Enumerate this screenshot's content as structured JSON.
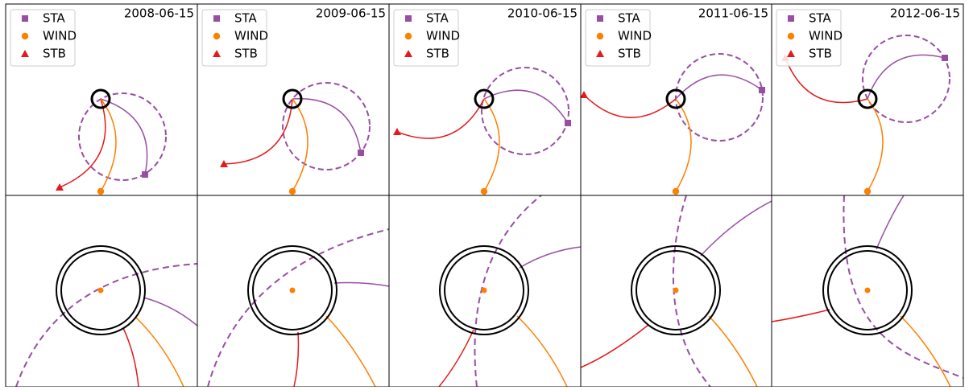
{
  "chart_data": {
    "type": "orbit-panels",
    "panels": [
      "2008-06-15",
      "2009-06-15",
      "2010-06-15",
      "2011-06-15",
      "2012-06-15"
    ],
    "series": [
      {
        "name": "STA",
        "color": "#984ea3",
        "marker": "square"
      },
      {
        "name": "WIND",
        "color": "#ff7f00",
        "marker": "circle"
      },
      {
        "name": "STB",
        "color": "#e41a1c",
        "marker": "triangle"
      }
    ]
  }
}
